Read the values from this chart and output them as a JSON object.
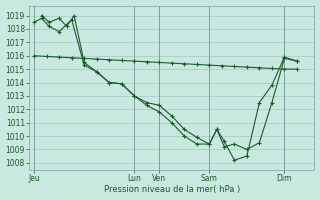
{
  "background_color": "#c8e8e0",
  "grid_color": "#9bbfbf",
  "line_color": "#1a5c28",
  "xlabel": "Pression niveau de la mer( hPa )",
  "ylim": [
    1007.5,
    1019.75
  ],
  "yticks": [
    1008,
    1009,
    1010,
    1011,
    1012,
    1013,
    1014,
    1015,
    1016,
    1017,
    1018,
    1019
  ],
  "day_labels": [
    "Jeu",
    "Lun",
    "Ven",
    "Sam",
    "Dim"
  ],
  "day_x": [
    0,
    4,
    5,
    7,
    10
  ],
  "xlim": [
    -0.2,
    11.2
  ],
  "series1_x": [
    0,
    0.5,
    1,
    1.5,
    2,
    2.5,
    3,
    3.5,
    4,
    4.5,
    5,
    5.5,
    6,
    6.5,
    7,
    7.5,
    8,
    8.5,
    9,
    9.5,
    10,
    10.5
  ],
  "series1_y": [
    1016.0,
    1015.95,
    1015.9,
    1015.85,
    1015.8,
    1015.75,
    1015.7,
    1015.65,
    1015.6,
    1015.55,
    1015.5,
    1015.45,
    1015.4,
    1015.35,
    1015.3,
    1015.25,
    1015.2,
    1015.15,
    1015.1,
    1015.05,
    1015.0,
    1015.0
  ],
  "series2_x": [
    0,
    0.3,
    0.6,
    1.0,
    1.5,
    2.0,
    2.5,
    3.0,
    3.5,
    4.0,
    4.5,
    5.0,
    5.5,
    6.0,
    6.5,
    7.0,
    7.3,
    7.6,
    8.0,
    8.5,
    9.0,
    9.5,
    10.0,
    10.5
  ],
  "series2_y": [
    1018.5,
    1018.8,
    1018.2,
    1017.8,
    1018.7,
    1015.3,
    1014.8,
    1014.0,
    1013.9,
    1013.0,
    1012.5,
    1012.3,
    1011.5,
    1010.5,
    1009.9,
    1009.4,
    1010.5,
    1009.2,
    1009.4,
    1009.0,
    1009.5,
    1012.5,
    1015.8,
    1015.6
  ],
  "series3_x": [
    0.3,
    0.6,
    1.0,
    1.3,
    1.6,
    2.0,
    2.5,
    3.0,
    3.5,
    4.0,
    4.5,
    5.0,
    5.5,
    6.0,
    6.5,
    7.0,
    7.3,
    7.6,
    8.0,
    8.5,
    9.0,
    9.5,
    10.0,
    10.5
  ],
  "series3_y": [
    1019.0,
    1018.5,
    1018.8,
    1018.2,
    1019.0,
    1015.5,
    1014.8,
    1014.0,
    1013.9,
    1013.0,
    1012.3,
    1011.8,
    1011.0,
    1010.0,
    1009.4,
    1009.4,
    1010.5,
    1009.6,
    1008.2,
    1008.5,
    1012.5,
    1013.8,
    1015.9,
    1015.6
  ]
}
